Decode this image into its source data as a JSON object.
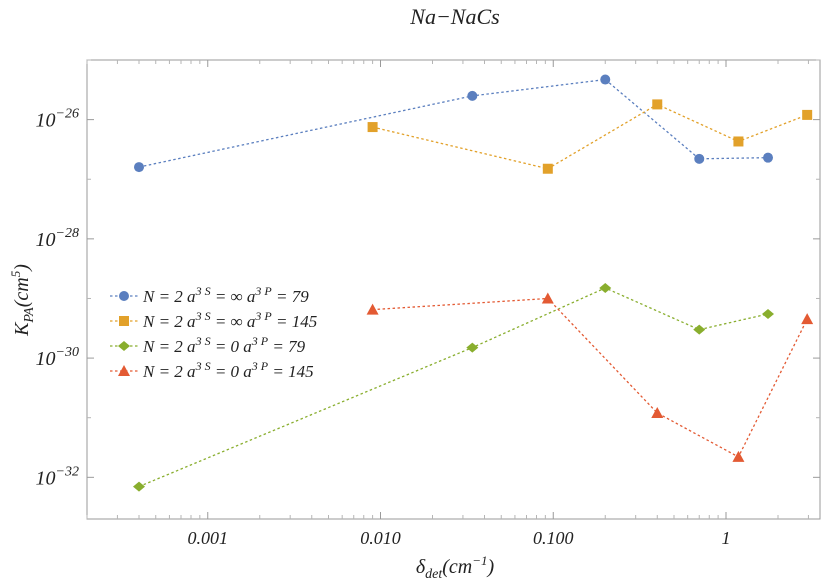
{
  "chart_data": {
    "type": "scatter",
    "title": "Na−NaCs",
    "xlabel": {
      "base": "δ",
      "sub": "det",
      "unit_open": "(cm",
      "unit_sup": "−1",
      "unit_close": ")"
    },
    "ylabel": {
      "base": "K",
      "sub": "PA",
      "unit_open": "(cm",
      "unit_sup": "5",
      "unit_close": ")"
    },
    "x_scale": "log",
    "y_scale": "log",
    "xlim": [
      0.0002,
      3.5
    ],
    "ylim": [
      2e-33,
      1e-25
    ],
    "x_ticks": [
      {
        "value": 0.001,
        "label": "0.001"
      },
      {
        "value": 0.01,
        "label": "0.010"
      },
      {
        "value": 0.1,
        "label": "0.100"
      },
      {
        "value": 1,
        "label": "1"
      }
    ],
    "y_ticks": [
      {
        "value": 1e-26,
        "base": "10",
        "exp": "−26"
      },
      {
        "value": 1e-28,
        "base": "10",
        "exp": "−28"
      },
      {
        "value": 1e-30,
        "base": "10",
        "exp": "−30"
      },
      {
        "value": 1e-32,
        "base": "10",
        "exp": "−32"
      }
    ],
    "grid": false,
    "legend_position": "left-middle",
    "series": [
      {
        "legend": {
          "pre": "N = 2 a",
          "s_sup": "3 S",
          "mid": " = ∞ a",
          "p_sup": "3 P",
          "post": " = 79"
        },
        "color": "#5b7fbf",
        "marker": "circle",
        "x": [
          0.0004,
          0.034,
          0.2,
          0.7,
          1.75
        ],
        "y": [
          1.6e-27,
          2.5e-26,
          4.7e-26,
          2.2e-27,
          2.3e-27
        ]
      },
      {
        "legend": {
          "pre": "N = 2 a",
          "s_sup": "3 S",
          "mid": " = ∞ a",
          "p_sup": "3 P",
          "post": " = 145"
        },
        "color": "#e2a12a",
        "marker": "square",
        "x": [
          0.009,
          0.093,
          0.4,
          1.18,
          2.95
        ],
        "y": [
          7.5e-27,
          1.5e-27,
          1.8e-26,
          4.3e-27,
          1.2e-26
        ]
      },
      {
        "legend": {
          "pre": "N = 2 a",
          "s_sup": "3 S",
          "mid": " = 0 a",
          "p_sup": "3 P",
          "post": " = 79"
        },
        "color": "#89ae2e",
        "marker": "diamond",
        "x": [
          0.0004,
          0.034,
          0.2,
          0.7,
          1.75
        ],
        "y": [
          7e-33,
          1.5e-30,
          1.5e-29,
          3e-30,
          5.5e-30
        ]
      },
      {
        "legend": {
          "pre": "N = 2 a",
          "s_sup": "3 S",
          "mid": " = 0 a",
          "p_sup": "3 P",
          "post": " = 145"
        },
        "color": "#e35a33",
        "marker": "triangle",
        "x": [
          0.009,
          0.093,
          0.4,
          1.18,
          2.95
        ],
        "y": [
          6.5e-30,
          1e-29,
          1.2e-31,
          2.2e-32,
          4.5e-30
        ]
      }
    ]
  }
}
